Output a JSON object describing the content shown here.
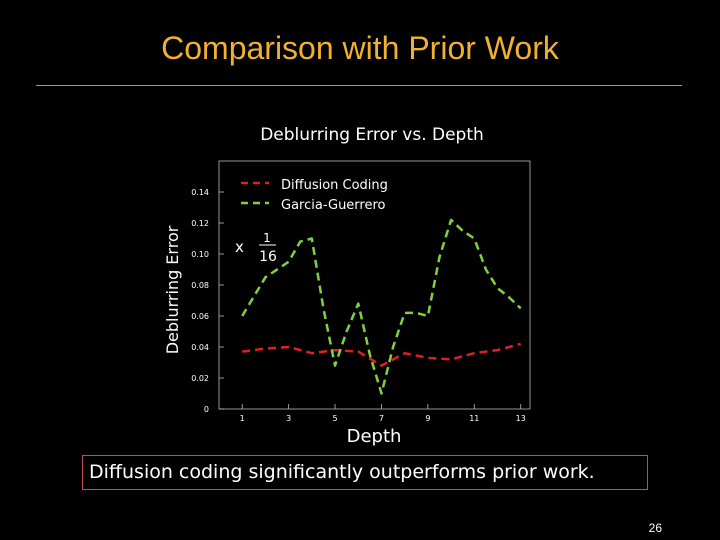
{
  "slide": {
    "title": "Comparison with Prior Work",
    "caption": "Diffusion coding significantly outperforms prior work.",
    "page_number": "26",
    "title_color": "#f0b030"
  },
  "chart_data": {
    "type": "line",
    "title": "Deblurring Error vs. Depth",
    "xlabel": "Depth",
    "ylabel": "Deblurring Error",
    "xlim": [
      0,
      13.4
    ],
    "ylim": [
      0,
      0.16
    ],
    "xticks": [
      1,
      3,
      5,
      7,
      9,
      11,
      13
    ],
    "xtick_labels": [
      "1",
      "3",
      "5",
      "7",
      "9",
      "11",
      "13"
    ],
    "yticks": [
      0,
      0.02,
      0.04,
      0.06,
      0.08,
      0.1,
      0.12,
      0.14
    ],
    "ytick_labels": [
      "0",
      "0.02",
      "0.04",
      "0.06",
      "0.08",
      "0.10",
      "0.12",
      "0.14"
    ],
    "legend_position": "top-center",
    "annotation": {
      "text": "x",
      "numerator": "1",
      "denominator": "16"
    },
    "series": [
      {
        "name": "Diffusion Coding",
        "color": "#e02020",
        "x": [
          1,
          2,
          3,
          4,
          5,
          6,
          7,
          8,
          9,
          10,
          11,
          12,
          13
        ],
        "y": [
          0.037,
          0.039,
          0.04,
          0.036,
          0.038,
          0.037,
          0.028,
          0.036,
          0.033,
          0.032,
          0.036,
          0.038,
          0.042
        ]
      },
      {
        "name": "Garcia-Guerrero",
        "color": "#80d040",
        "x": [
          1,
          2,
          3,
          3.5,
          4,
          4.5,
          5,
          5.5,
          6,
          6.5,
          7,
          7.5,
          8,
          8.5,
          9,
          9.5,
          10,
          10.5,
          11,
          11.5,
          12,
          12.5,
          13
        ],
        "y": [
          0.06,
          0.085,
          0.095,
          0.108,
          0.11,
          0.065,
          0.028,
          0.05,
          0.068,
          0.035,
          0.01,
          0.04,
          0.062,
          0.062,
          0.06,
          0.098,
          0.122,
          0.115,
          0.11,
          0.09,
          0.078,
          0.072,
          0.065
        ]
      }
    ]
  }
}
